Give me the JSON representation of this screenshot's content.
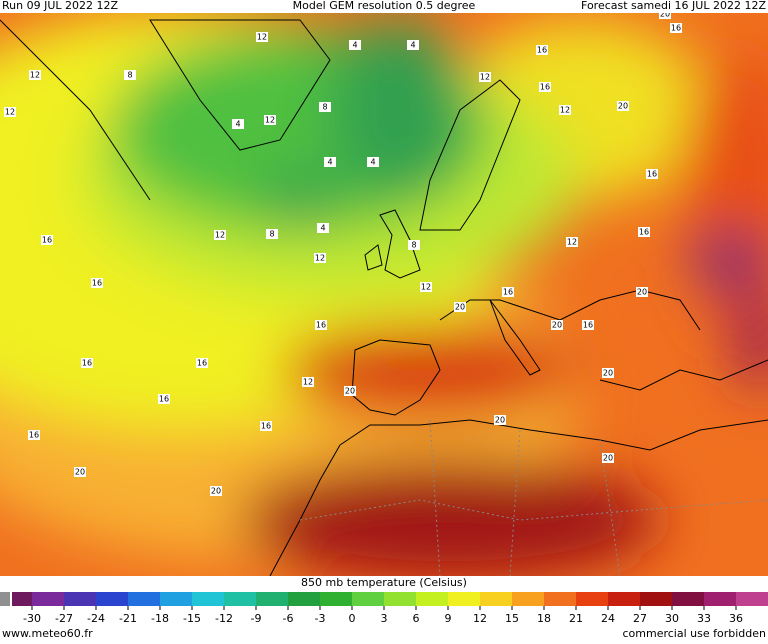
{
  "header": {
    "run": "Run 09 JUL 2022 12Z",
    "model": "Model GEM resolution 0.5 degree",
    "forecast": "Forecast samedi 16 JUL 2022 12Z"
  },
  "map": {
    "contour_labels": [
      12,
      12,
      12,
      8,
      4,
      12,
      8,
      4,
      4,
      4,
      4,
      4,
      8,
      12,
      16,
      16,
      12,
      12,
      8,
      12,
      16,
      16,
      12,
      20,
      16,
      12,
      16,
      20,
      20,
      16,
      20,
      16,
      16,
      16,
      16,
      12,
      20,
      16,
      16,
      16,
      20,
      20,
      20,
      20,
      20,
      20,
      16
    ]
  },
  "colorbar": {
    "title": "850 mb temperature (Celsius)",
    "lim": [
      -33,
      39
    ],
    "ticks": [
      -30,
      -27,
      -24,
      -21,
      -18,
      -15,
      -12,
      -9,
      -6,
      -3,
      0,
      3,
      6,
      9,
      12,
      15,
      18,
      21,
      24,
      27,
      30,
      33,
      36
    ],
    "colors": [
      "#6e1a5e",
      "#7a2a9a",
      "#4a34b4",
      "#2a44d0",
      "#2270e0",
      "#20a0e0",
      "#20c4d4",
      "#20c0a4",
      "#22b070",
      "#22a040",
      "#30b030",
      "#60d040",
      "#92e030",
      "#c4f020",
      "#f0f020",
      "#f8d020",
      "#f8a020",
      "#f07020",
      "#e84010",
      "#c82010",
      "#a01010",
      "#801040",
      "#a02070",
      "#c04090"
    ]
  },
  "footer": {
    "site": "www.meteo60.fr",
    "notice": "commercial use forbidden"
  }
}
